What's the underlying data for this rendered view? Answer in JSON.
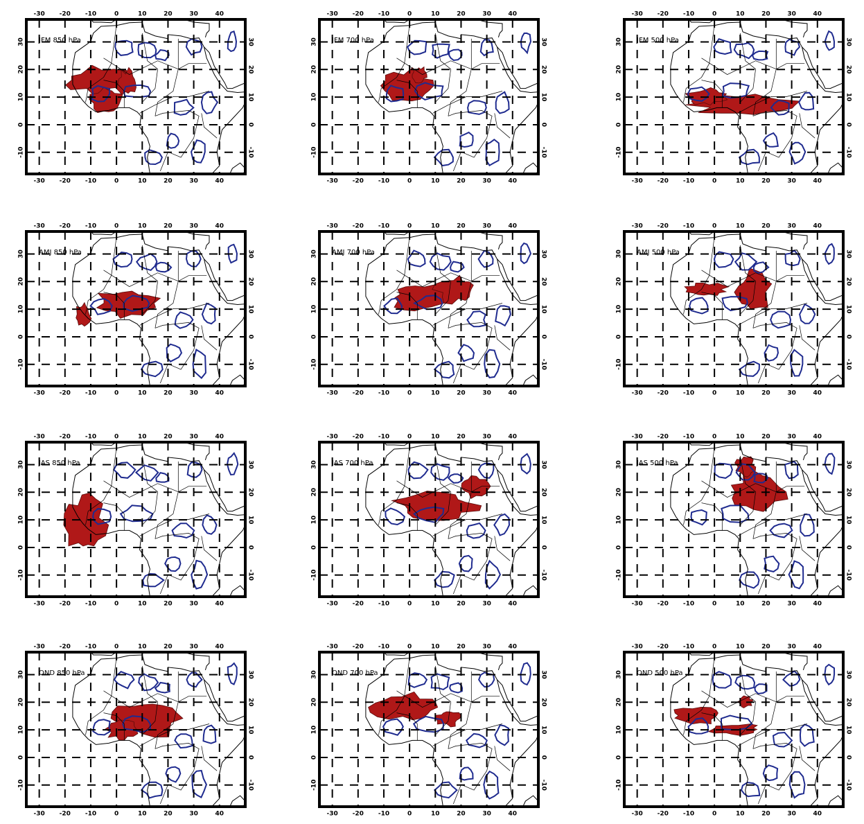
{
  "panels": [
    {
      "label": "JFM 850 hPa"
    },
    {
      "label": "JFM 700 hPa"
    },
    {
      "label": "JFM 500 hPa"
    },
    {
      "label": "AMJ 850 hPa"
    },
    {
      "label": "AMJ 700 hPa"
    },
    {
      "label": "AMJ 500 hPa"
    },
    {
      "label": "JAS 850 hPa"
    },
    {
      "label": "JAS 700 hPa"
    },
    {
      "label": "JAS 500 hPa"
    },
    {
      "label": "OND 850 hPa"
    },
    {
      "label": "OND 700 hPa"
    },
    {
      "label": "OND 500 hPa"
    }
  ],
  "lon_ticks": [
    -30,
    -20,
    -10,
    0,
    10,
    20,
    30,
    40
  ],
  "lat_ticks": [
    -10,
    0,
    10,
    20,
    30
  ]
}
